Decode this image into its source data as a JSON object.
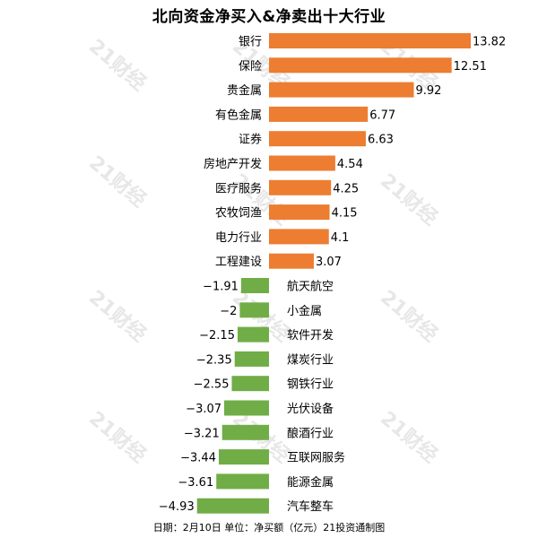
{
  "chart_data": {
    "type": "bar",
    "orientation": "horizontal",
    "title": "北向资金净买入&净卖出十大行业",
    "footer": "日期：2月10日 单位：净买额（亿元）21投资通制图",
    "watermark": "21财经",
    "categories": [
      "银行",
      "保险",
      "贵金属",
      "有色金属",
      "证券",
      "房地产开发",
      "医疗服务",
      "农牧饲渔",
      "电力行业",
      "工程建设",
      "航天航空",
      "小金属",
      "软件开发",
      "煤炭行业",
      "钢铁行业",
      "光伏设备",
      "酿酒行业",
      "互联网服务",
      "能源金属",
      "汽车整车"
    ],
    "values": [
      13.82,
      12.51,
      9.92,
      6.77,
      6.63,
      4.54,
      4.25,
      4.15,
      4.1,
      3.07,
      -1.91,
      -2,
      -2.15,
      -2.35,
      -2.55,
      -3.07,
      -3.21,
      -3.44,
      -3.61,
      -4.93
    ],
    "value_labels": [
      "13.82",
      "12.51",
      "9.92",
      "6.77",
      "6.63",
      "4.54",
      "4.25",
      "4.15",
      "4.1",
      "3.07",
      "−1.91",
      "−2",
      "−2.15",
      "−2.35",
      "−2.55",
      "−3.07",
      "−3.21",
      "−3.44",
      "−3.61",
      "−4.93"
    ],
    "colors": {
      "positive": "#ED7D31",
      "negative": "#70AD47",
      "text": "#000000",
      "watermark": "#d4d4d4"
    },
    "grid": false,
    "legend": "none"
  }
}
